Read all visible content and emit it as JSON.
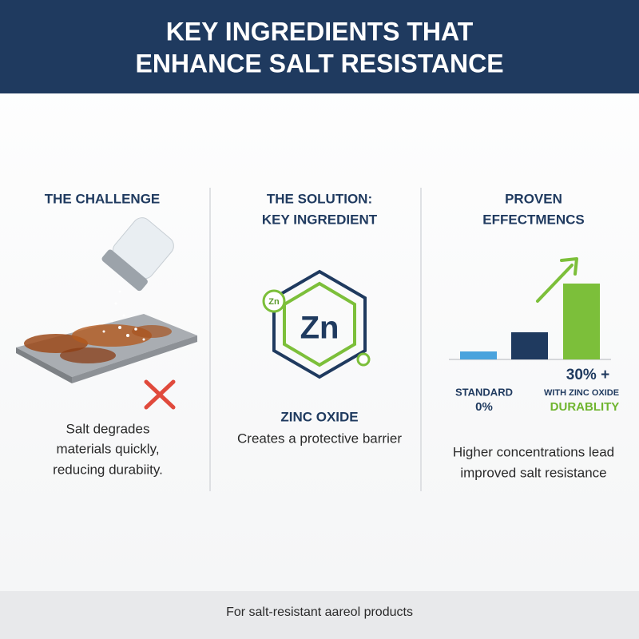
{
  "header": {
    "title": [
      "KEY INGREDIENTS THAT",
      "ENHANCE SALT RESISTANCE"
    ]
  },
  "columns": [
    {
      "title": [
        "THE CHALLENGE"
      ],
      "body": [
        "Salt degrades",
        "materials quickly,",
        "reducing durabiity."
      ]
    },
    {
      "title": [
        "THE SOLUTION:",
        "KEY INGREDIENT"
      ],
      "icon_symbol": "Zn",
      "icon_badge": "Zn",
      "name": "ZINC OXIDE",
      "body": [
        "Creates a protective barrier"
      ]
    },
    {
      "title": [
        "PROVEN",
        "EFFECTMENCS"
      ],
      "labels": {
        "standard": "STANDARD",
        "standard_value": "0%",
        "improved_value": "30% +",
        "improved": "WITH ZINC OXIDE",
        "improved_note": "DURABLITY"
      },
      "body": [
        "Higher concentrations lead",
        "improved salt resistance"
      ]
    }
  ],
  "footer": {
    "text": "For salt-resistant aareol products"
  }
}
